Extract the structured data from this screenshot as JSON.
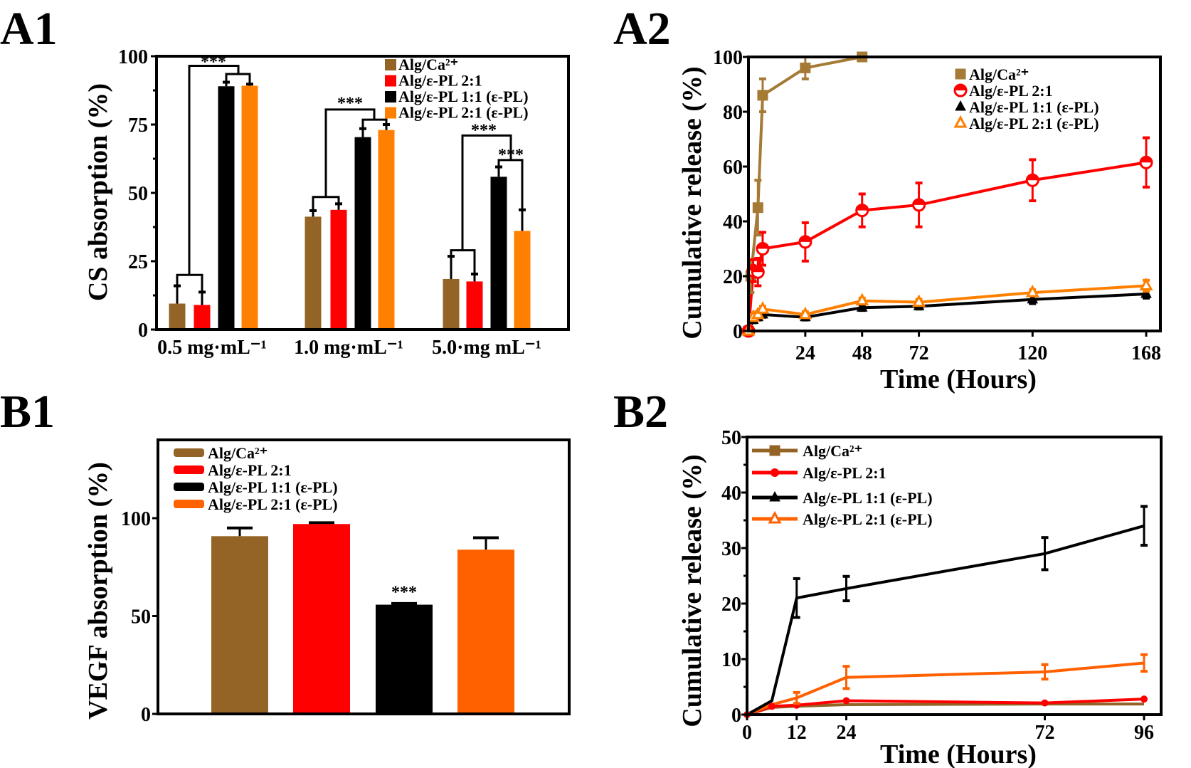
{
  "chart_data": [
    {
      "panel_label": "A1",
      "type": "bar",
      "ylabel": "CS absorption (%)",
      "xlabel": "",
      "ylim": [
        0,
        100
      ],
      "yticks": [
        "0",
        "25",
        "50",
        "75",
        "100"
      ],
      "categories": [
        "0.5 mg·mL⁻¹",
        "1.0 mg·mL⁻¹",
        "5.0·mg mL⁻¹"
      ],
      "series": [
        {
          "name": "Alg/Ca²⁺",
          "color": "#936426",
          "values": [
            9.5,
            41.3,
            18.5
          ],
          "errors": [
            6.5,
            2.2,
            8.3
          ]
        },
        {
          "name": "Alg/ε-PL 2:1",
          "color": "#ff0000",
          "values": [
            9,
            43.8,
            17.6
          ],
          "errors": [
            4.7,
            2.2,
            2.7
          ]
        },
        {
          "name": "Alg/ε-PL 1:1 (ε-PL)",
          "color": "#000000",
          "values": [
            89,
            70.4,
            55.9
          ],
          "errors": [
            1.5,
            3.1,
            3.6
          ]
        },
        {
          "name": "Alg/ε-PL 2:1 (ε-PL)",
          "color": "#ff8000",
          "values": [
            89.2,
            73,
            36.1
          ],
          "errors": [
            0.6,
            2,
            7.7
          ]
        }
      ],
      "significance": [
        "***",
        "***",
        "***",
        "***"
      ],
      "legend": "top-right",
      "grid": false
    },
    {
      "panel_label": "A2",
      "type": "line",
      "ylabel": "Cumulative release (%)",
      "xlabel": "Time (Hours)",
      "xlim": [
        0,
        168
      ],
      "ylim": [
        0,
        100
      ],
      "xticks": [
        24,
        48,
        72,
        120,
        168
      ],
      "yticks": [
        0,
        20,
        40,
        60,
        80,
        100
      ],
      "series": [
        {
          "name": "Alg/Ca²⁺",
          "color": "#a57a35",
          "marker": "square-filled",
          "x": [
            0,
            1,
            4,
            6,
            24,
            48
          ],
          "y": [
            0,
            20,
            45,
            86,
            96,
            100
          ],
          "errors": [
            0,
            6,
            10,
            6,
            4,
            0
          ]
        },
        {
          "name": "Alg/ε-PL 2:1",
          "color": "#ff0000",
          "marker": "circle-half",
          "x": [
            0,
            2,
            4,
            6,
            24,
            48,
            72,
            120,
            168
          ],
          "y": [
            0,
            22,
            21.5,
            30,
            32.5,
            44,
            46,
            55,
            61.5
          ],
          "errors": [
            0,
            4,
            5,
            6,
            7,
            6,
            8,
            7.5,
            9
          ]
        },
        {
          "name": "Alg/ε-PL 1:1 (ε-PL)",
          "color": "#000000",
          "marker": "triangle-filled",
          "x": [
            0,
            2,
            4,
            6,
            24,
            48,
            72,
            120,
            168
          ],
          "y": [
            0,
            4,
            5,
            6,
            5,
            8.5,
            9,
            11.5,
            13.5
          ],
          "errors": [
            0,
            1,
            1,
            1,
            1,
            1,
            1,
            1.5,
            1.5
          ]
        },
        {
          "name": "Alg/ε-PL 2:1 (ε-PL)",
          "color": "#ff8000",
          "marker": "triangle-open",
          "x": [
            0,
            2,
            4,
            6,
            24,
            48,
            72,
            120,
            168
          ],
          "y": [
            0,
            5,
            6,
            8,
            6,
            11,
            10.5,
            14,
            16.5
          ],
          "errors": [
            0,
            1,
            1,
            1,
            1,
            1,
            1,
            1,
            2
          ]
        }
      ],
      "legend": "top-right",
      "grid": false
    },
    {
      "panel_label": "B1",
      "type": "bar",
      "ylabel": "VEGF absorption (%)",
      "xlabel": "",
      "ylim": [
        0,
        140
      ],
      "yticks": [
        "0",
        "50",
        "100"
      ],
      "series": [
        {
          "name": "Alg/Ca²⁺",
          "color": "#936426",
          "value": 90.8,
          "error": 4.2
        },
        {
          "name": "Alg/ε-PL 2:1",
          "color": "#ff0000",
          "value": 97,
          "error": 0.7
        },
        {
          "name": "Alg/ε-PL 1:1 (ε-PL)",
          "color": "#000000",
          "value": 55.8,
          "error": 0.6,
          "significance": "***"
        },
        {
          "name": "Alg/ε-PL 2:1 (ε-PL)",
          "color": "#ff6000",
          "value": 83.9,
          "error": 6.1
        }
      ],
      "legend": "top-left",
      "grid": false
    },
    {
      "panel_label": "B2",
      "type": "line",
      "ylabel": "Cumulative release (%)",
      "xlabel": "Time (Hours)",
      "xlim": [
        0,
        96
      ],
      "ylim": [
        0,
        50
      ],
      "xticks": [
        0,
        12,
        24,
        72,
        96
      ],
      "yticks": [
        0,
        10,
        20,
        30,
        40,
        50
      ],
      "series": [
        {
          "name": "Alg/Ca²⁺",
          "color": "#936426",
          "marker": "square",
          "x": [
            0,
            6,
            12,
            24,
            72,
            96
          ],
          "y": [
            0,
            1.3,
            1.5,
            1.8,
            1.9,
            1.9
          ],
          "errors": [
            0,
            0,
            0,
            0,
            0,
            0
          ]
        },
        {
          "name": "Alg/ε-PL 2:1",
          "color": "#ff0000",
          "marker": "circle",
          "x": [
            0,
            6,
            12,
            24,
            72,
            96
          ],
          "y": [
            0,
            1.5,
            1.7,
            2.5,
            2.1,
            2.8
          ],
          "errors": [
            0,
            0,
            0,
            0,
            0,
            0
          ]
        },
        {
          "name": "Alg/ε-PL 1:1 (ε-PL)",
          "color": "#000000",
          "marker": "triangle",
          "x": [
            0,
            6,
            12,
            24,
            72,
            96
          ],
          "y": [
            0,
            2.5,
            21,
            22.7,
            29,
            34
          ],
          "errors": [
            0,
            0,
            3.5,
            2.2,
            2.9,
            3.5
          ]
        },
        {
          "name": "Alg/ε-PL 2:1 (ε-PL)",
          "color": "#ff6000",
          "marker": "triangle-open",
          "x": [
            0,
            6,
            12,
            24,
            72,
            96
          ],
          "y": [
            0,
            1.8,
            3,
            6.7,
            7.7,
            9.3
          ],
          "errors": [
            0,
            0,
            1,
            2,
            1.3,
            1.5
          ]
        }
      ],
      "legend": "top-left",
      "grid": false
    }
  ]
}
